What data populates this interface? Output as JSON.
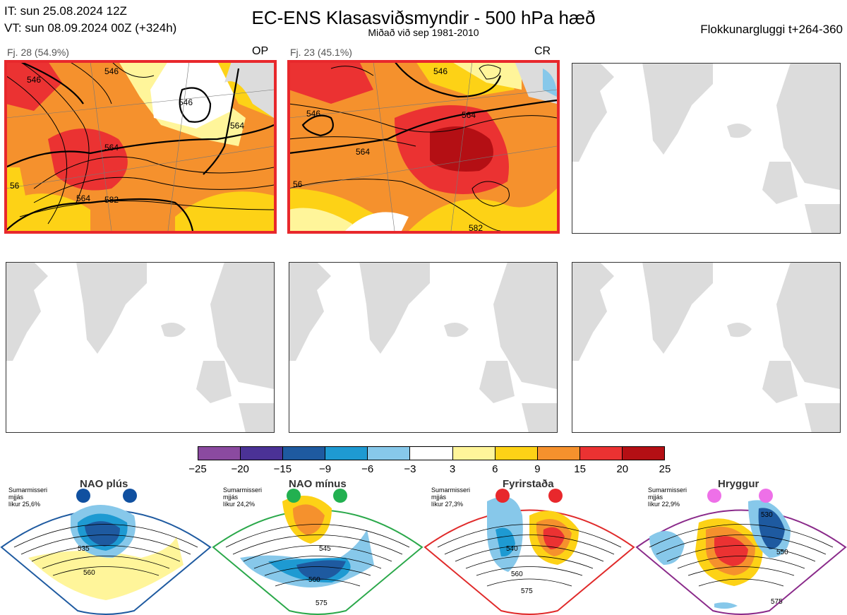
{
  "header": {
    "it_line": "IT: sun 25.08.2024 12Z",
    "vt_line": "VT: sun 08.09.2024 00Z  (+324h)",
    "title": "EC-ENS Klasasviðsmyndir - 500 hPa hæð",
    "subtitle": "Miðað við sep 1981-2010",
    "window": "Flokkunargluggi t+264-360"
  },
  "panels": [
    {
      "label": "Fj. 28 (54.9%)",
      "tag": "OP",
      "contours": [
        "564",
        "546",
        "546",
        "546",
        "564",
        "564",
        "582",
        "56"
      ]
    },
    {
      "label": "Fj. 23 (45.1%)",
      "tag": "CR",
      "contours": [
        "546",
        "546",
        "564",
        "564",
        "582",
        "56"
      ]
    }
  ],
  "colorbar": {
    "ticks": [
      "−25",
      "−20",
      "−15",
      "−9",
      "−6",
      "−3",
      "3",
      "6",
      "9",
      "15",
      "20",
      "25"
    ],
    "colors": [
      "#8b4aa0",
      "#4b3296",
      "#1e5aa0",
      "#1e9ad2",
      "#87c8ea",
      "#ffffff",
      "#fff59a",
      "#fdd216",
      "#f5912d",
      "#eb3232",
      "#b40f14"
    ]
  },
  "regimes": [
    {
      "name": "NAO plús",
      "season": "Sumarmisseri",
      "smooth": "mjjás",
      "prob": "líkur 25,6%",
      "contours": [
        "535",
        "560"
      ],
      "color": "#1e5aa0",
      "dot": "#1050a0"
    },
    {
      "name": "NAO mínus",
      "season": "Sumarmisseri",
      "smooth": "mjjás",
      "prob": "líkur 24,2%",
      "contours": [
        "545",
        "560",
        "575"
      ],
      "color": "#2aa84a",
      "dot": "#22b050"
    },
    {
      "name": "Fyrirstaða",
      "season": "Sumarmisseri",
      "smooth": "mjjás",
      "prob": "líkur 27,3%",
      "contours": [
        "540",
        "560",
        "575"
      ],
      "color": "#e02a2a",
      "dot": "#e8282c"
    },
    {
      "name": "Hryggur",
      "season": "Sumarmisseri",
      "smooth": "mjjás",
      "prob": "líkur 22,9%",
      "contours": [
        "530",
        "550",
        "575"
      ],
      "color": "#8a2a8a",
      "dot": "#ee70e8"
    }
  ],
  "chart_data": {
    "type": "heatmap",
    "title": "EC-ENS Klasasviðsmyndir - 500 hPa hæð",
    "colorbar_range": [
      -25,
      25
    ],
    "clusters": [
      {
        "label": "Fj. 28 (54.9%)",
        "members": 28,
        "percent": 54.9,
        "tag": "OP"
      },
      {
        "label": "Fj. 23 (45.1%)",
        "members": 23,
        "percent": 45.1,
        "tag": "CR"
      }
    ],
    "regimes": [
      {
        "name": "NAO plús",
        "probability": 25.6
      },
      {
        "name": "NAO mínus",
        "probability": 24.2
      },
      {
        "name": "Fyrirstaða",
        "probability": 27.3
      },
      {
        "name": "Hryggur",
        "probability": 22.9
      }
    ]
  }
}
